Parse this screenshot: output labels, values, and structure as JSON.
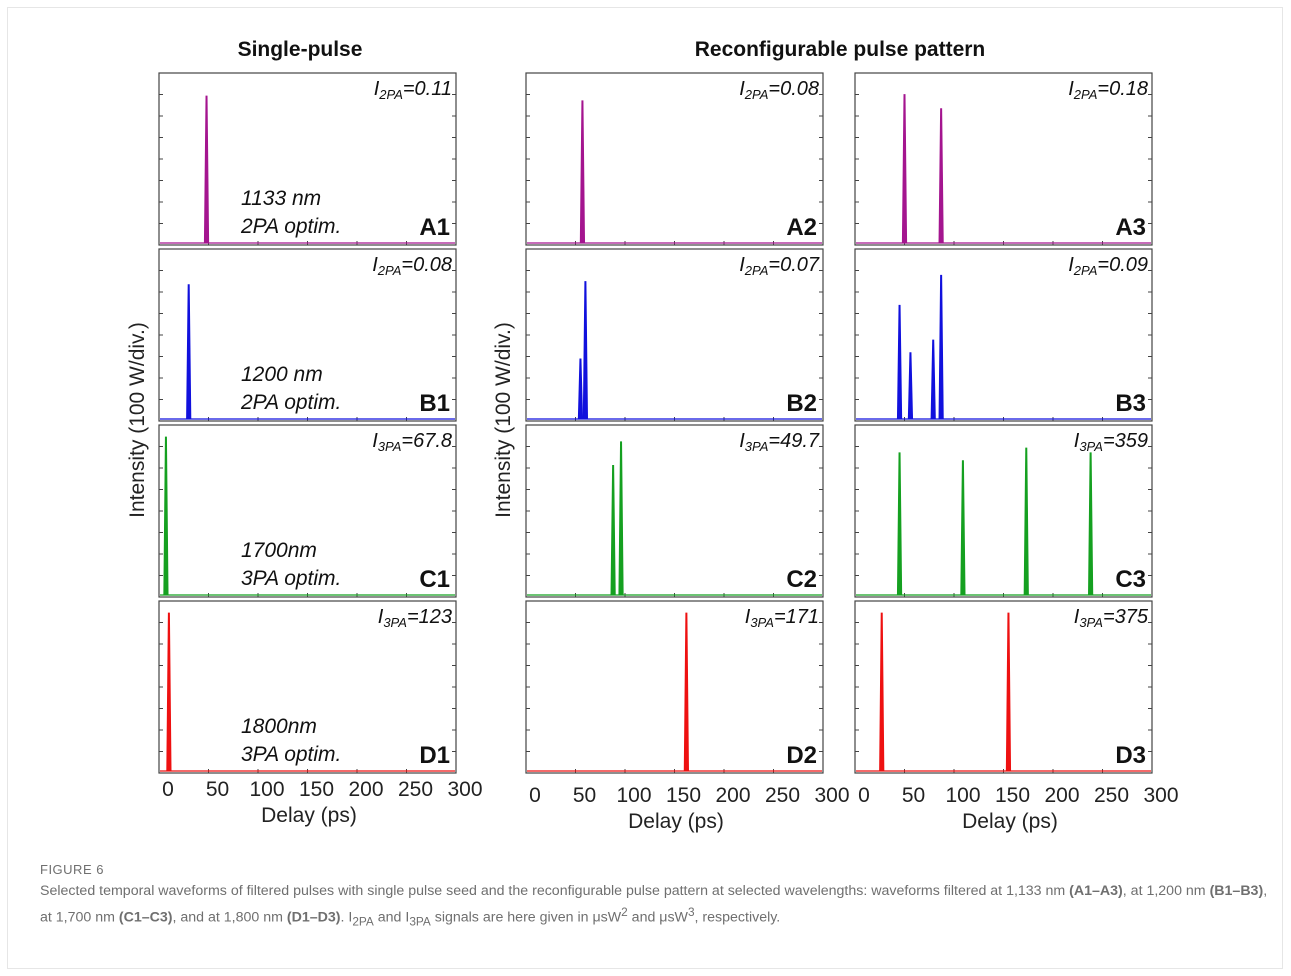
{
  "colors": {
    "A": "#a4158f",
    "B": "#1111dd",
    "C": "#15a020",
    "D": "#ee1111"
  },
  "column_titles": {
    "single": "Single-pulse",
    "reconfig": "Reconfigurable pulse pattern"
  },
  "y_axis_label": "Intensity (100 W/div.)",
  "x_axis": {
    "label": "Delay (ps)",
    "ticks": [
      0,
      50,
      100,
      150,
      200,
      250,
      300
    ]
  },
  "chart_data": {
    "type": "line",
    "xlabel": "Delay (ps)",
    "ylabel": "Intensity (100 W/div.)",
    "xlim": [
      0,
      300
    ],
    "panels": [
      {
        "id": "A1",
        "row": "A",
        "col": 1,
        "metric_sym": "I",
        "metric_sub": "2PA",
        "metric_val": "=0.11",
        "note": [
          "1133 nm",
          "2PA optim."
        ],
        "pulses": [
          [
            48,
            0.93
          ]
        ]
      },
      {
        "id": "A2",
        "row": "A",
        "col": 2,
        "metric_sym": "I",
        "metric_sub": "2PA",
        "metric_val": "=0.08",
        "note": [],
        "pulses": [
          [
            57,
            0.9
          ]
        ]
      },
      {
        "id": "A3",
        "row": "A",
        "col": 3,
        "metric_sym": "I",
        "metric_sub": "2PA",
        "metric_val": "=0.18",
        "note": [],
        "pulses": [
          [
            50,
            0.94
          ],
          [
            87,
            0.85
          ]
        ]
      },
      {
        "id": "B1",
        "row": "B",
        "col": 1,
        "metric_sym": "I",
        "metric_sub": "2PA",
        "metric_val": "=0.08",
        "note": [
          "1200 nm",
          "2PA optim."
        ],
        "pulses": [
          [
            30,
            0.85
          ]
        ]
      },
      {
        "id": "B2",
        "row": "B",
        "col": 2,
        "metric_sym": "I",
        "metric_sub": "2PA",
        "metric_val": "=0.07",
        "note": [],
        "pulses": [
          [
            55,
            0.38
          ],
          [
            60,
            0.87
          ]
        ]
      },
      {
        "id": "B3",
        "row": "B",
        "col": 3,
        "metric_sym": "I",
        "metric_sub": "2PA",
        "metric_val": "=0.09",
        "note": [],
        "pulses": [
          [
            45,
            0.72
          ],
          [
            56,
            0.42
          ],
          [
            79,
            0.5
          ],
          [
            87,
            0.91
          ]
        ]
      },
      {
        "id": "C1",
        "row": "C",
        "col": 1,
        "metric_sym": "I",
        "metric_sub": "3PA",
        "metric_val": "=67.8",
        "note": [
          "1700nm",
          "3PA optim."
        ],
        "pulses": [
          [
            7,
            1.0
          ]
        ]
      },
      {
        "id": "C2",
        "row": "C",
        "col": 2,
        "metric_sym": "I",
        "metric_sub": "3PA",
        "metric_val": "=49.7",
        "note": [],
        "pulses": [
          [
            88,
            0.82
          ],
          [
            96,
            0.97
          ]
        ]
      },
      {
        "id": "C3",
        "row": "C",
        "col": 3,
        "metric_sym": "I",
        "metric_sub": "3PA",
        "metric_val": "=359",
        "note": [],
        "pulses": [
          [
            45,
            0.9
          ],
          [
            109,
            0.85
          ],
          [
            173,
            0.93
          ],
          [
            238,
            0.9
          ]
        ]
      },
      {
        "id": "D1",
        "row": "D",
        "col": 1,
        "metric_sym": "I",
        "metric_sub": "3PA",
        "metric_val": "=123",
        "note": [
          "1800nm",
          "3PA optim."
        ],
        "pulses": [
          [
            10,
            1.0
          ]
        ]
      },
      {
        "id": "D2",
        "row": "D",
        "col": 2,
        "metric_sym": "I",
        "metric_sub": "3PA",
        "metric_val": "=171",
        "note": [],
        "pulses": [
          [
            162,
            1.0
          ]
        ]
      },
      {
        "id": "D3",
        "row": "D",
        "col": 3,
        "metric_sym": "I",
        "metric_sub": "3PA",
        "metric_val": "=375",
        "note": [],
        "pulses": [
          [
            27,
            1.0
          ],
          [
            155,
            1.0
          ]
        ]
      }
    ]
  },
  "caption": {
    "label": "FIGURE 6",
    "text_1": "Selected temporal waveforms of filtered pulses with single pulse seed and the reconfigurable pulse pattern at selected wavelengths: waveforms filtered at 1,133 nm ",
    "bold_1": "(A1–A3)",
    "text_2": ", at 1,200 nm ",
    "bold_2": "(B1–B3)",
    "text_3": ", at 1,700 nm ",
    "bold_3": "(C1–C3)",
    "text_4": ", and at 1,800 nm ",
    "bold_4": "(D1–D3)",
    "text_5": ". I",
    "sub_1": "2PA",
    "text_6": " and I",
    "sub_2": "3PA",
    "text_7": " signals are here given in μsW",
    "sup_1": "2",
    "text_8": " and μsW",
    "sup_2": "3",
    "text_9": ", respectively."
  }
}
